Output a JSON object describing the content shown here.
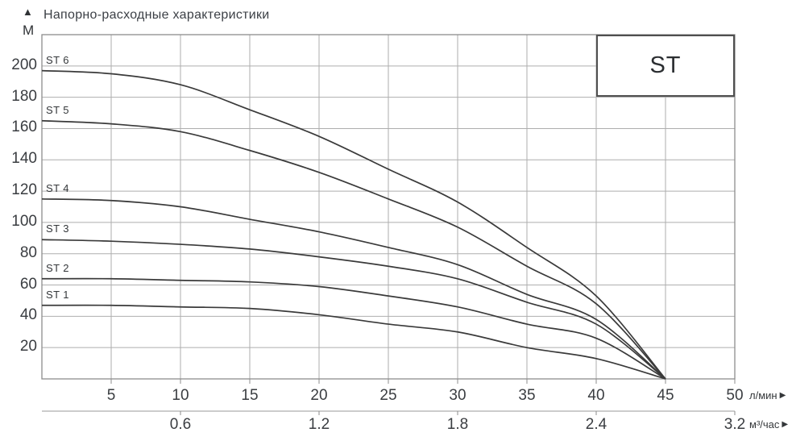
{
  "header": {
    "title": "Напорно-расходные характеристики",
    "y_axis_unit": "М",
    "up_arrow_icon": "▲"
  },
  "badge": {
    "label": "ST"
  },
  "axis_units": {
    "primary": "л/мин",
    "secondary": "м³/час",
    "arrow_icon": "▶"
  },
  "chart_data": {
    "type": "line",
    "title": "Напорно-расходные характеристики",
    "x": [
      0,
      5,
      10,
      15,
      20,
      25,
      30,
      35,
      40,
      45
    ],
    "series": [
      {
        "name": "ST 6",
        "head": 197,
        "values": [
          197,
          195,
          188,
          172,
          155,
          134,
          113,
          84,
          53,
          0
        ]
      },
      {
        "name": "ST 5",
        "head": 165,
        "values": [
          165,
          163,
          158,
          146,
          132,
          115,
          97,
          72,
          48,
          0
        ]
      },
      {
        "name": "ST 4",
        "head": 115,
        "values": [
          115,
          114,
          110,
          102,
          94,
          84,
          73,
          54,
          38,
          0
        ]
      },
      {
        "name": "ST 3",
        "head": 89,
        "values": [
          89,
          88,
          86,
          83,
          78,
          72,
          64,
          49,
          35,
          0
        ]
      },
      {
        "name": "ST 2",
        "head": 64,
        "values": [
          64,
          64,
          63,
          62,
          59,
          53,
          46,
          35,
          26,
          0
        ]
      },
      {
        "name": "ST 1",
        "head": 47,
        "values": [
          47,
          47,
          46,
          45,
          41,
          35,
          30,
          20,
          13,
          0
        ]
      }
    ],
    "x_axis": {
      "label": "л/мин",
      "range": [
        0,
        50
      ],
      "ticks": [
        5,
        10,
        15,
        20,
        25,
        30,
        35,
        40,
        45,
        50
      ]
    },
    "x_axis_secondary": {
      "label": "м³/час",
      "tick_labels": [
        "0.6",
        "1.2",
        "1.8",
        "2.4",
        "3.2"
      ],
      "tick_positions": [
        10,
        20,
        30,
        40,
        50
      ]
    },
    "y_axis": {
      "label": "М",
      "range": [
        0,
        220
      ],
      "ticks": [
        20,
        40,
        60,
        80,
        100,
        120,
        140,
        160,
        180,
        200
      ]
    },
    "grid": {
      "on": true,
      "x_step": 5,
      "y_step": 20
    },
    "legend": "inline-curve-labels",
    "colors": {
      "curve": "#3a3a3a",
      "grid": "#aeaeae",
      "border": "#8d8d8d",
      "tick": "#8d8d8d",
      "text": "#3a3d41"
    }
  }
}
